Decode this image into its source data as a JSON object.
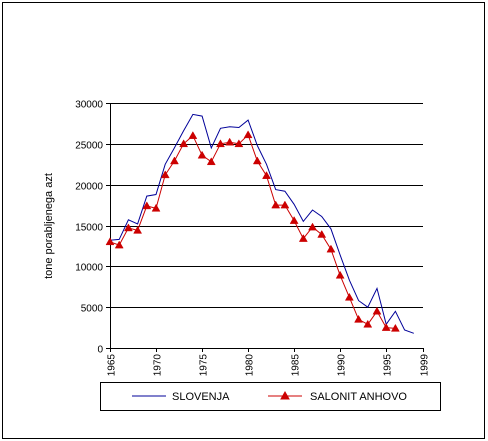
{
  "chart_data": {
    "type": "line",
    "title": "",
    "xlabel": "",
    "ylabel": "tone porabljenega azt",
    "xlim": [
      1965,
      1999
    ],
    "ylim": [
      0,
      30000
    ],
    "yticks": [
      0,
      5000,
      10000,
      15000,
      20000,
      25000,
      30000
    ],
    "ytick_labels": [
      "0",
      "5000",
      "10000",
      "15000",
      "20000",
      "25000",
      "30000"
    ],
    "xticks": [
      1965,
      1970,
      1975,
      1980,
      1985,
      1990,
      1995,
      1999
    ],
    "xtick_labels": [
      "1965",
      "1970",
      "1975",
      "1980",
      "1985",
      "1990",
      "1995",
      "1999"
    ],
    "grid": "horizontal",
    "legend_position": "bottom",
    "series": [
      {
        "name": "SLOVENJA",
        "color": "#000099",
        "marker": "none",
        "points": [
          [
            1965,
            13200
          ],
          [
            1966,
            13300
          ],
          [
            1967,
            15700
          ],
          [
            1968,
            15200
          ],
          [
            1969,
            18600
          ],
          [
            1970,
            18800
          ],
          [
            1971,
            22500
          ],
          [
            1972,
            24500
          ],
          [
            1973,
            26600
          ],
          [
            1974,
            28600
          ],
          [
            1975,
            28400
          ],
          [
            1976,
            24500
          ],
          [
            1977,
            26900
          ],
          [
            1978,
            27100
          ],
          [
            1979,
            27000
          ],
          [
            1980,
            27900
          ],
          [
            1981,
            24800
          ],
          [
            1982,
            22500
          ],
          [
            1983,
            19400
          ],
          [
            1984,
            19200
          ],
          [
            1985,
            17600
          ],
          [
            1986,
            15500
          ],
          [
            1987,
            16900
          ],
          [
            1988,
            16100
          ],
          [
            1989,
            14600
          ],
          [
            1990,
            11400
          ],
          [
            1991,
            8300
          ],
          [
            1992,
            5800
          ],
          [
            1993,
            5000
          ],
          [
            1994,
            7300
          ],
          [
            1995,
            2900
          ],
          [
            1996,
            4500
          ],
          [
            1997,
            2200
          ],
          [
            1998,
            1800
          ]
        ]
      },
      {
        "name": "SALONIT ANHOVO",
        "color": "#cc0000",
        "marker": "triangle",
        "points": [
          [
            1965,
            13000
          ],
          [
            1966,
            12600
          ],
          [
            1967,
            14700
          ],
          [
            1968,
            14400
          ],
          [
            1969,
            17400
          ],
          [
            1970,
            17100
          ],
          [
            1971,
            21200
          ],
          [
            1972,
            22900
          ],
          [
            1973,
            25000
          ],
          [
            1974,
            26000
          ],
          [
            1975,
            23600
          ],
          [
            1976,
            22800
          ],
          [
            1977,
            25000
          ],
          [
            1978,
            25200
          ],
          [
            1979,
            25000
          ],
          [
            1980,
            26100
          ],
          [
            1981,
            22900
          ],
          [
            1982,
            21100
          ],
          [
            1983,
            17500
          ],
          [
            1984,
            17500
          ],
          [
            1985,
            15600
          ],
          [
            1986,
            13400
          ],
          [
            1987,
            14800
          ],
          [
            1988,
            13900
          ],
          [
            1989,
            12100
          ],
          [
            1990,
            8900
          ],
          [
            1991,
            6200
          ],
          [
            1992,
            3500
          ],
          [
            1993,
            2900
          ],
          [
            1994,
            4500
          ],
          [
            1995,
            2500
          ],
          [
            1996,
            2400
          ]
        ]
      }
    ]
  }
}
